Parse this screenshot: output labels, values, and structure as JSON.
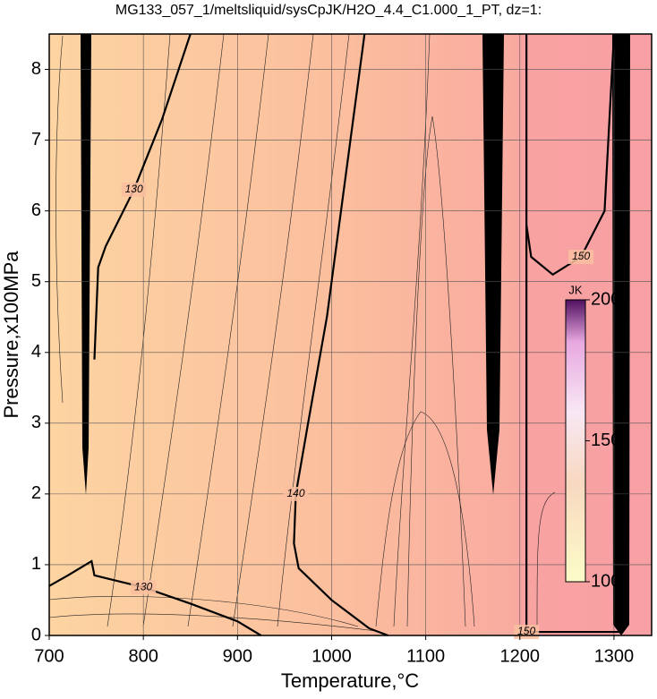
{
  "chart_data": {
    "type": "contour",
    "title": "MG133_057_1/meltsliquid/sysCpJK/H2O_4.4_C1.000_1_PT, dz=1:",
    "x_label": "Temperature,°C",
    "y_label": "Pressure,x100MPa",
    "xlim": [
      700,
      1340
    ],
    "ylim": [
      0,
      8.5
    ],
    "xticks": [
      700,
      800,
      900,
      1000,
      1100,
      1200,
      1300
    ],
    "yticks": [
      0,
      1,
      2,
      3,
      4,
      5,
      6,
      7,
      8
    ],
    "grid": true,
    "contours": [
      {
        "level": 130,
        "points": [
          [
            700,
            0.7
          ],
          [
            720,
            0.85
          ],
          [
            745,
            1.05
          ],
          [
            748,
            0.85
          ],
          [
            800,
            0.68
          ],
          [
            850,
            0.45
          ],
          [
            900,
            0.2
          ],
          [
            925,
            0
          ]
        ]
      },
      {
        "level": 130,
        "points": [
          [
            748,
            3.9
          ],
          [
            752,
            5.2
          ],
          [
            760,
            5.5
          ],
          [
            790,
            6.3
          ],
          [
            820,
            7.3
          ],
          [
            850,
            8.5
          ]
        ]
      },
      {
        "level": 140,
        "points": [
          [
            1060,
            0
          ],
          [
            1040,
            0.1
          ],
          [
            1000,
            0.5
          ],
          [
            965,
            0.95
          ],
          [
            960,
            1.3
          ],
          [
            962,
            2.0
          ],
          [
            975,
            3.0
          ],
          [
            995,
            4.5
          ],
          [
            1010,
            6.0
          ],
          [
            1035,
            8.5
          ]
        ]
      },
      {
        "level": 150,
        "points": [
          [
            1207,
            8.5
          ],
          [
            1207,
            4.0
          ],
          [
            1207,
            0.05
          ],
          [
            1310,
            0.05
          ]
        ]
      },
      {
        "level": 150,
        "points": [
          [
            1207,
            5.8
          ],
          [
            1212,
            5.35
          ],
          [
            1235,
            5.1
          ],
          [
            1265,
            5.35
          ],
          [
            1290,
            6.0
          ],
          [
            1300,
            8.5
          ]
        ]
      }
    ],
    "colorbar": {
      "label": "JK",
      "lim": [
        100,
        200
      ],
      "ticks": [
        100,
        150,
        200
      ]
    }
  }
}
